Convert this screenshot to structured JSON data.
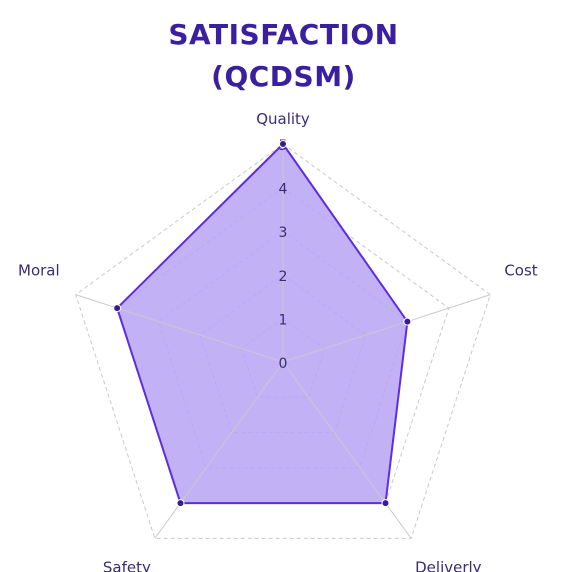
{
  "chart_data": {
    "type": "radar",
    "title_lines": [
      "SATISFACTION",
      "(QCDSM)"
    ],
    "axes": [
      "Quality",
      "Cost",
      "Deliverly",
      "Safety",
      "Moral"
    ],
    "series": [
      {
        "values": [
          5,
          3,
          4,
          4,
          4
        ]
      }
    ],
    "rlim": [
      0,
      5
    ],
    "ticks": [
      "0",
      "1",
      "2",
      "3",
      "4",
      "5"
    ],
    "grid": "dashed pentagon",
    "colors": {
      "title": "#3a1fa0",
      "fill": "#b8a3f5",
      "stroke": "#5b2ee0",
      "point": "#3a1a8c",
      "grid": "#c8c8d0",
      "label": "#3a2a7a"
    }
  }
}
